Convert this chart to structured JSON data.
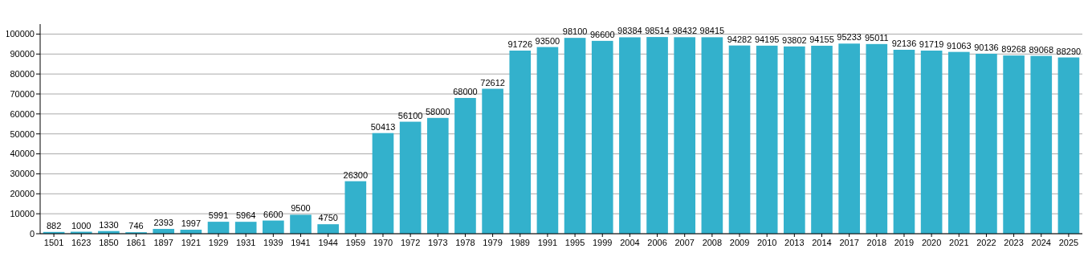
{
  "chart_data": {
    "type": "bar",
    "categories": [
      "1501",
      "1623",
      "1850",
      "1861",
      "1897",
      "1921",
      "1929",
      "1931",
      "1939",
      "1941",
      "1944",
      "1959",
      "1970",
      "1972",
      "1973",
      "1978",
      "1979",
      "1989",
      "1991",
      "1995",
      "1999",
      "2004",
      "2006",
      "2007",
      "2008",
      "2009",
      "2010",
      "2013",
      "2014",
      "2017",
      "2018",
      "2019",
      "2020",
      "2021",
      "2022",
      "2023",
      "2024",
      "2025"
    ],
    "values": [
      882,
      1000,
      1330,
      746,
      2393,
      1997,
      5991,
      5964,
      6600,
      9500,
      4750,
      26300,
      50413,
      56100,
      58000,
      68000,
      72612,
      91726,
      93500,
      98100,
      96600,
      98384,
      98514,
      98432,
      98415,
      94282,
      94195,
      93802,
      94155,
      95233,
      95011,
      92136,
      91719,
      91063,
      90136,
      89268,
      89068,
      88290
    ],
    "color": "#33b1cc",
    "ylim": [
      0,
      105000
    ],
    "yticks": [
      0,
      10000,
      20000,
      30000,
      40000,
      50000,
      60000,
      70000,
      80000,
      90000,
      100000
    ],
    "grid": "y",
    "data_labels": true
  }
}
